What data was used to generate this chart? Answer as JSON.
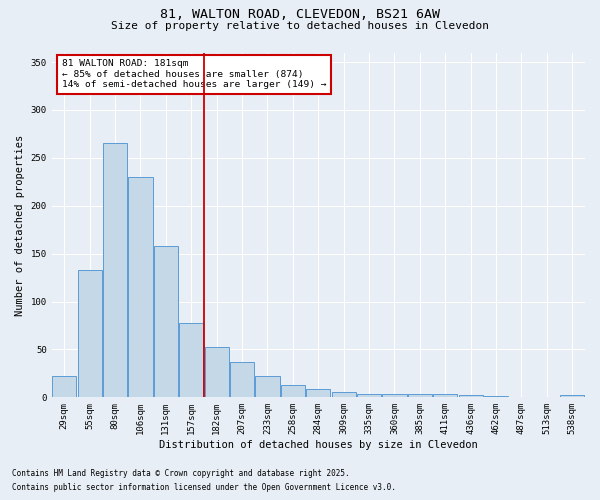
{
  "title1": "81, WALTON ROAD, CLEVEDON, BS21 6AW",
  "title2": "Size of property relative to detached houses in Clevedon",
  "xlabel": "Distribution of detached houses by size in Clevedon",
  "ylabel": "Number of detached properties",
  "categories": [
    "29sqm",
    "55sqm",
    "80sqm",
    "106sqm",
    "131sqm",
    "157sqm",
    "182sqm",
    "207sqm",
    "233sqm",
    "258sqm",
    "284sqm",
    "309sqm",
    "335sqm",
    "360sqm",
    "385sqm",
    "411sqm",
    "436sqm",
    "462sqm",
    "487sqm",
    "513sqm",
    "538sqm"
  ],
  "values": [
    22,
    133,
    265,
    230,
    158,
    78,
    53,
    37,
    22,
    13,
    9,
    6,
    4,
    4,
    4,
    3,
    2,
    1,
    0,
    0,
    2
  ],
  "bar_color": "#c5d8e8",
  "bar_edge_color": "#5b9bd5",
  "vline_x_index": 6,
  "vline_color": "#cc0000",
  "annotation_text": "81 WALTON ROAD: 181sqm\n← 85% of detached houses are smaller (874)\n14% of semi-detached houses are larger (149) →",
  "annotation_box_color": "#ffffff",
  "annotation_box_edge": "#cc0000",
  "bg_color": "#e8eef5",
  "grid_color": "#ffffff",
  "footer1": "Contains HM Land Registry data © Crown copyright and database right 2025.",
  "footer2": "Contains public sector information licensed under the Open Government Licence v3.0.",
  "ylim": [
    0,
    360
  ],
  "yticks": [
    0,
    50,
    100,
    150,
    200,
    250,
    300,
    350
  ],
  "title1_fontsize": 9.5,
  "title2_fontsize": 8,
  "tick_fontsize": 6.5,
  "label_fontsize": 7.5,
  "annotation_fontsize": 6.8,
  "footer_fontsize": 5.5
}
